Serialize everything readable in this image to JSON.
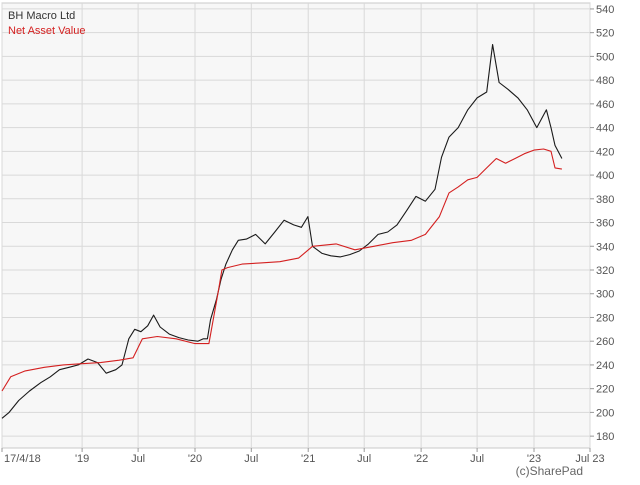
{
  "chart_data": {
    "type": "line",
    "title": "",
    "xlabel": "",
    "ylabel": "",
    "ylim": [
      170,
      545
    ],
    "y_ticks": [
      180,
      200,
      220,
      240,
      260,
      280,
      300,
      320,
      340,
      360,
      380,
      400,
      420,
      440,
      460,
      480,
      500,
      520,
      540
    ],
    "x_range": [
      "2018-04-17",
      "2023-07-01"
    ],
    "x_ticks": [
      {
        "label": "17/4/18",
        "date": "2018-04-17"
      },
      {
        "label": "'19",
        "date": "2019-01-01"
      },
      {
        "label": "Jul",
        "date": "2019-07-01"
      },
      {
        "label": "'20",
        "date": "2020-01-01"
      },
      {
        "label": "Jul",
        "date": "2020-07-01"
      },
      {
        "label": "'21",
        "date": "2021-01-01"
      },
      {
        "label": "Jul",
        "date": "2021-07-01"
      },
      {
        "label": "'22",
        "date": "2022-01-01"
      },
      {
        "label": "Jul",
        "date": "2022-07-01"
      },
      {
        "label": "'23",
        "date": "2023-01-01"
      },
      {
        "label": "Jul 23",
        "date": "2023-07-01"
      }
    ],
    "grid": true,
    "legend_position": "top-left",
    "y_axis_side": "right",
    "watermark": "(c)SharePad",
    "series": [
      {
        "name": "BH Macro Ltd",
        "color": "#1a1a1a",
        "points": [
          [
            "2018-04-17",
            195
          ],
          [
            "2018-05-10",
            200
          ],
          [
            "2018-06-10",
            210
          ],
          [
            "2018-07-15",
            218
          ],
          [
            "2018-08-20",
            225
          ],
          [
            "2018-09-20",
            230
          ],
          [
            "2018-10-20",
            236
          ],
          [
            "2018-11-20",
            238
          ],
          [
            "2018-12-20",
            240
          ],
          [
            "2019-01-20",
            245
          ],
          [
            "2019-02-20",
            242
          ],
          [
            "2019-03-20",
            233
          ],
          [
            "2019-04-20",
            236
          ],
          [
            "2019-05-10",
            240
          ],
          [
            "2019-06-01",
            262
          ],
          [
            "2019-06-20",
            270
          ],
          [
            "2019-07-10",
            268
          ],
          [
            "2019-08-01",
            273
          ],
          [
            "2019-08-20",
            282
          ],
          [
            "2019-09-10",
            272
          ],
          [
            "2019-10-10",
            266
          ],
          [
            "2019-11-10",
            263
          ],
          [
            "2019-12-10",
            261
          ],
          [
            "2020-01-10",
            260
          ],
          [
            "2020-01-28",
            262
          ],
          [
            "2020-02-10",
            262
          ],
          [
            "2020-02-20",
            278
          ],
          [
            "2020-03-10",
            295
          ],
          [
            "2020-03-25",
            312
          ],
          [
            "2020-04-10",
            325
          ],
          [
            "2020-05-01",
            337
          ],
          [
            "2020-05-20",
            345
          ],
          [
            "2020-06-15",
            346
          ],
          [
            "2020-07-15",
            350
          ],
          [
            "2020-08-15",
            342
          ],
          [
            "2020-09-15",
            352
          ],
          [
            "2020-10-15",
            362
          ],
          [
            "2020-11-15",
            358
          ],
          [
            "2020-12-10",
            356
          ],
          [
            "2020-12-31",
            365
          ],
          [
            "2021-01-15",
            340
          ],
          [
            "2021-02-15",
            334
          ],
          [
            "2021-03-15",
            332
          ],
          [
            "2021-04-15",
            331
          ],
          [
            "2021-05-15",
            333
          ],
          [
            "2021-06-15",
            336
          ],
          [
            "2021-07-15",
            342
          ],
          [
            "2021-08-15",
            350
          ],
          [
            "2021-09-15",
            352
          ],
          [
            "2021-10-15",
            358
          ],
          [
            "2021-11-15",
            370
          ],
          [
            "2021-12-15",
            382
          ],
          [
            "2022-01-15",
            378
          ],
          [
            "2022-02-15",
            388
          ],
          [
            "2022-03-08",
            415
          ],
          [
            "2022-04-01",
            432
          ],
          [
            "2022-05-01",
            440
          ],
          [
            "2022-06-01",
            455
          ],
          [
            "2022-07-01",
            465
          ],
          [
            "2022-08-01",
            470
          ],
          [
            "2022-08-20",
            510
          ],
          [
            "2022-09-10",
            478
          ],
          [
            "2022-10-10",
            472
          ],
          [
            "2022-11-10",
            465
          ],
          [
            "2022-12-10",
            455
          ],
          [
            "2023-01-10",
            440
          ],
          [
            "2023-02-10",
            455
          ],
          [
            "2023-02-25",
            440
          ],
          [
            "2023-03-10",
            425
          ],
          [
            "2023-03-20",
            420
          ],
          [
            "2023-04-01",
            414
          ]
        ]
      },
      {
        "name": "Net Asset Value",
        "color": "#d42020",
        "points": [
          [
            "2018-04-17",
            218
          ],
          [
            "2018-05-15",
            230
          ],
          [
            "2018-07-01",
            235
          ],
          [
            "2018-09-01",
            238
          ],
          [
            "2018-11-01",
            240
          ],
          [
            "2019-01-01",
            241
          ],
          [
            "2019-03-01",
            242
          ],
          [
            "2019-05-01",
            244
          ],
          [
            "2019-06-15",
            246
          ],
          [
            "2019-07-15",
            262
          ],
          [
            "2019-09-01",
            264
          ],
          [
            "2019-11-01",
            262
          ],
          [
            "2020-01-01",
            258
          ],
          [
            "2020-02-15",
            258
          ],
          [
            "2020-03-15",
            300
          ],
          [
            "2020-03-28",
            320
          ],
          [
            "2020-04-15",
            322
          ],
          [
            "2020-06-01",
            325
          ],
          [
            "2020-08-01",
            326
          ],
          [
            "2020-10-01",
            327
          ],
          [
            "2020-12-01",
            330
          ],
          [
            "2021-01-15",
            340
          ],
          [
            "2021-04-01",
            342
          ],
          [
            "2021-06-01",
            337
          ],
          [
            "2021-08-01",
            340
          ],
          [
            "2021-10-01",
            343
          ],
          [
            "2021-12-01",
            345
          ],
          [
            "2022-01-15",
            350
          ],
          [
            "2022-03-01",
            365
          ],
          [
            "2022-04-01",
            385
          ],
          [
            "2022-05-01",
            390
          ],
          [
            "2022-06-01",
            396
          ],
          [
            "2022-07-01",
            398
          ],
          [
            "2022-08-01",
            406
          ],
          [
            "2022-09-01",
            414
          ],
          [
            "2022-10-01",
            410
          ],
          [
            "2022-11-01",
            414
          ],
          [
            "2022-12-01",
            418
          ],
          [
            "2023-01-01",
            421
          ],
          [
            "2023-02-01",
            422
          ],
          [
            "2023-02-25",
            420
          ],
          [
            "2023-03-10",
            406
          ],
          [
            "2023-04-01",
            405
          ]
        ]
      }
    ]
  }
}
